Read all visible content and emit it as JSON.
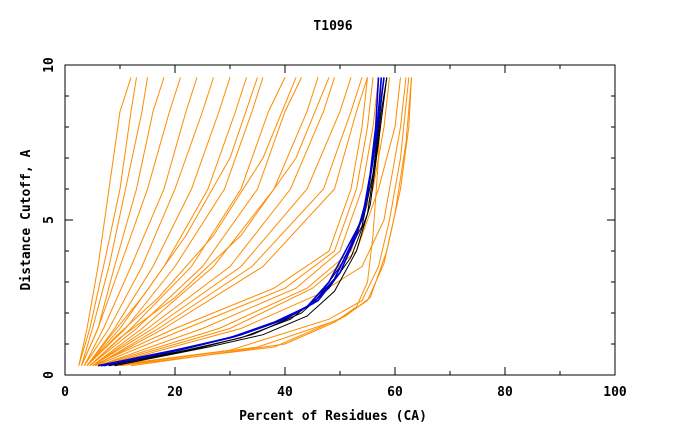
{
  "chart_data": {
    "type": "line",
    "title": "T1096",
    "xlabel": "Percent of Residues (CA)",
    "ylabel": "Distance Cutoff, A",
    "xlim": [
      0,
      100
    ],
    "ylim": [
      0,
      10
    ],
    "x_ticks": [
      "0",
      "20",
      "40",
      "60",
      "80",
      "100"
    ],
    "y_ticks": [
      "0",
      "5",
      "10"
    ],
    "grid": false,
    "colors": {
      "models": "#ff8c00",
      "reference": "#000000",
      "highlight": "#0000cd"
    },
    "series": [
      {
        "group": "models-steep",
        "points": [
          [
            2.5,
            0.3
          ],
          [
            4,
            1.5
          ],
          [
            6,
            3.5
          ],
          [
            8,
            6
          ],
          [
            10,
            8.5
          ],
          [
            12,
            9.6
          ]
        ]
      },
      {
        "group": "models-steep",
        "points": [
          [
            2.5,
            0.3
          ],
          [
            4.5,
            1.5
          ],
          [
            7,
            3.5
          ],
          [
            10,
            6
          ],
          [
            12,
            8.5
          ],
          [
            13,
            9.6
          ]
        ]
      },
      {
        "group": "models-steep",
        "points": [
          [
            3,
            0.3
          ],
          [
            5,
            1.5
          ],
          [
            8,
            3.5
          ],
          [
            11,
            6
          ],
          [
            14,
            8.5
          ],
          [
            15,
            9.6
          ]
        ]
      },
      {
        "group": "models-steep",
        "points": [
          [
            3,
            0.3
          ],
          [
            6,
            1.5
          ],
          [
            9,
            3.5
          ],
          [
            13,
            6
          ],
          [
            16,
            8.5
          ],
          [
            18,
            9.6
          ]
        ]
      },
      {
        "group": "models-steep",
        "points": [
          [
            3,
            0.3
          ],
          [
            6,
            1.5
          ],
          [
            10,
            3.5
          ],
          [
            15,
            6
          ],
          [
            19,
            8.5
          ],
          [
            21,
            9.6
          ]
        ]
      },
      {
        "group": "models-steep",
        "points": [
          [
            3.5,
            0.3
          ],
          [
            7,
            1.5
          ],
          [
            12,
            3.5
          ],
          [
            18,
            6
          ],
          [
            22,
            8.5
          ],
          [
            24,
            9.6
          ]
        ]
      },
      {
        "group": "models-steep",
        "points": [
          [
            3.5,
            0.3
          ],
          [
            8,
            1.5
          ],
          [
            14,
            3.5
          ],
          [
            20,
            6
          ],
          [
            25,
            8.5
          ],
          [
            27,
            9.6
          ]
        ]
      },
      {
        "group": "models-steep",
        "points": [
          [
            4,
            0.3
          ],
          [
            9,
            1.5
          ],
          [
            16,
            3.5
          ],
          [
            23,
            6
          ],
          [
            28,
            8.5
          ],
          [
            30,
            9.6
          ]
        ]
      },
      {
        "group": "models-steep",
        "points": [
          [
            4,
            0.3
          ],
          [
            10,
            1.5
          ],
          [
            18,
            3.5
          ],
          [
            26,
            6
          ],
          [
            31,
            8.5
          ],
          [
            33,
            9.6
          ]
        ]
      },
      {
        "group": "models-steep",
        "points": [
          [
            4,
            0.3
          ],
          [
            11,
            1.5
          ],
          [
            20,
            3.5
          ],
          [
            29,
            6
          ],
          [
            34,
            8.5
          ],
          [
            36,
            9.6
          ]
        ]
      },
      {
        "group": "models-steep",
        "points": [
          [
            4.5,
            0.3
          ],
          [
            12,
            1.5
          ],
          [
            23,
            3.5
          ],
          [
            32,
            6
          ],
          [
            37,
            8.5
          ],
          [
            40,
            9.6
          ]
        ]
      },
      {
        "group": "models-steep",
        "points": [
          [
            4.5,
            0.3
          ],
          [
            13,
            1.5
          ],
          [
            25,
            3.5
          ],
          [
            35,
            6
          ],
          [
            40,
            8.5
          ],
          [
            43,
            9.6
          ]
        ]
      },
      {
        "group": "models-steep",
        "points": [
          [
            5,
            0.3
          ],
          [
            14,
            1.5
          ],
          [
            27,
            3.5
          ],
          [
            38,
            6
          ],
          [
            44,
            8.5
          ],
          [
            46,
            9.6
          ]
        ]
      },
      {
        "group": "models-steep",
        "points": [
          [
            5,
            0.3
          ],
          [
            15,
            1.5
          ],
          [
            30,
            3.5
          ],
          [
            41,
            6
          ],
          [
            47,
            8.5
          ],
          [
            49,
            9.6
          ]
        ]
      },
      {
        "group": "models-steep",
        "points": [
          [
            5,
            0.3
          ],
          [
            16,
            1.5
          ],
          [
            32,
            3.5
          ],
          [
            44,
            6
          ],
          [
            50,
            8.5
          ],
          [
            52,
            9.6
          ]
        ]
      },
      {
        "group": "models-steep",
        "points": [
          [
            5.5,
            0.3
          ],
          [
            17,
            1.5
          ],
          [
            34,
            3.5
          ],
          [
            47,
            6
          ],
          [
            52,
            8.5
          ],
          [
            54,
            9.6
          ]
        ]
      },
      {
        "group": "models-steep",
        "points": [
          [
            5.5,
            0.3
          ],
          [
            18,
            1.5
          ],
          [
            36,
            3.5
          ],
          [
            49,
            6
          ],
          [
            53,
            8.5
          ],
          [
            55,
            9.6
          ]
        ]
      },
      {
        "group": "models-steep",
        "points": [
          [
            4,
            0.3
          ],
          [
            8,
            1.2
          ],
          [
            14,
            2.5
          ],
          [
            22,
            4.5
          ],
          [
            30,
            7
          ],
          [
            35,
            9.6
          ]
        ]
      },
      {
        "group": "models-steep",
        "points": [
          [
            4,
            0.3
          ],
          [
            9,
            1.2
          ],
          [
            17,
            2.5
          ],
          [
            27,
            4.5
          ],
          [
            36,
            7
          ],
          [
            42,
            9.6
          ]
        ]
      },
      {
        "group": "models-steep",
        "points": [
          [
            4.5,
            0.3
          ],
          [
            10,
            1.2
          ],
          [
            20,
            2.5
          ],
          [
            32,
            4.5
          ],
          [
            42,
            7
          ],
          [
            48,
            9.6
          ]
        ]
      },
      {
        "group": "models-mid",
        "points": [
          [
            5,
            0.3
          ],
          [
            20,
            1.5
          ],
          [
            38,
            2.8
          ],
          [
            48,
            4
          ],
          [
            52,
            6
          ],
          [
            54,
            8
          ],
          [
            55,
            9.6
          ]
        ]
      },
      {
        "group": "models-mid",
        "points": [
          [
            5.5,
            0.3
          ],
          [
            22,
            1.5
          ],
          [
            40,
            2.8
          ],
          [
            49,
            4
          ],
          [
            53,
            6
          ],
          [
            55,
            8
          ],
          [
            56,
            9.6
          ]
        ]
      },
      {
        "group": "models-mid",
        "points": [
          [
            6,
            0.3
          ],
          [
            25,
            1.5
          ],
          [
            42,
            2.8
          ],
          [
            50,
            4
          ],
          [
            54,
            6
          ],
          [
            56,
            8
          ],
          [
            57,
            9.6
          ]
        ]
      },
      {
        "group": "models-mid",
        "points": [
          [
            6,
            0.3
          ],
          [
            28,
            1.5
          ],
          [
            44,
            2.8
          ],
          [
            52,
            4
          ],
          [
            56,
            6
          ],
          [
            58,
            8
          ],
          [
            59,
            9.6
          ]
        ]
      },
      {
        "group": "models-mid",
        "points": [
          [
            6.5,
            0.3
          ],
          [
            30,
            1.5
          ],
          [
            45,
            2.8
          ],
          [
            53,
            4
          ],
          [
            57,
            6
          ],
          [
            60,
            8
          ],
          [
            61,
            9.6
          ]
        ]
      },
      {
        "group": "models-mid",
        "points": [
          [
            7,
            0.3
          ],
          [
            32,
            1.5
          ],
          [
            46,
            2.6
          ],
          [
            54,
            3.5
          ],
          [
            58,
            5
          ],
          [
            61,
            8
          ],
          [
            62,
            9.6
          ]
        ]
      },
      {
        "group": "models-flat",
        "points": [
          [
            8,
            0.3
          ],
          [
            30,
            0.8
          ],
          [
            48,
            1.8
          ],
          [
            54,
            2.4
          ],
          [
            57,
            3.5
          ],
          [
            59,
            5
          ],
          [
            61,
            7
          ],
          [
            62.5,
            9.6
          ]
        ]
      },
      {
        "group": "models-flat",
        "points": [
          [
            9,
            0.3
          ],
          [
            35,
            0.9
          ],
          [
            50,
            1.8
          ],
          [
            55,
            2.4
          ],
          [
            58,
            3.6
          ],
          [
            60,
            5.2
          ],
          [
            62,
            7.5
          ],
          [
            63,
            9.6
          ]
        ]
      },
      {
        "group": "models-flat",
        "points": [
          [
            10,
            0.3
          ],
          [
            38,
            0.9
          ],
          [
            51,
            1.9
          ],
          [
            55.5,
            2.5
          ],
          [
            58.5,
            4
          ],
          [
            61,
            6
          ],
          [
            62.5,
            8
          ],
          [
            63,
            9.6
          ]
        ]
      },
      {
        "group": "models-flat",
        "points": [
          [
            12,
            0.3
          ],
          [
            40,
            1
          ],
          [
            49,
            1.7
          ],
          [
            53,
            2.2
          ],
          [
            55,
            3
          ],
          [
            56,
            4.5
          ],
          [
            57,
            7
          ],
          [
            57.5,
            9.6
          ]
        ]
      },
      {
        "group": "reference",
        "points": [
          [
            7,
            0.3
          ],
          [
            22,
            0.8
          ],
          [
            32,
            1.2
          ],
          [
            41,
            1.8
          ],
          [
            46,
            2.5
          ],
          [
            50,
            3.5
          ],
          [
            54,
            4.8
          ],
          [
            56,
            6.5
          ],
          [
            57,
            8
          ],
          [
            58,
            9.6
          ]
        ]
      },
      {
        "group": "reference",
        "points": [
          [
            8,
            0.3
          ],
          [
            24,
            0.85
          ],
          [
            34,
            1.3
          ],
          [
            43,
            2
          ],
          [
            48,
            2.8
          ],
          [
            52,
            3.8
          ],
          [
            55,
            5.2
          ],
          [
            56.5,
            7
          ],
          [
            57.5,
            8.5
          ],
          [
            58.5,
            9.6
          ]
        ]
      },
      {
        "group": "reference",
        "points": [
          [
            9,
            0.3
          ],
          [
            26,
            0.9
          ],
          [
            36,
            1.3
          ],
          [
            44,
            1.9
          ],
          [
            49,
            2.7
          ],
          [
            53,
            4
          ],
          [
            55.5,
            5.5
          ],
          [
            57,
            7.5
          ],
          [
            58.5,
            9.6
          ]
        ]
      },
      {
        "group": "highlight",
        "points": [
          [
            6,
            0.3
          ],
          [
            20,
            0.8
          ],
          [
            30,
            1.2
          ],
          [
            38,
            1.7
          ],
          [
            44,
            2.2
          ],
          [
            48,
            3
          ],
          [
            51,
            4
          ],
          [
            54,
            5
          ],
          [
            55.5,
            6.5
          ],
          [
            56.5,
            8
          ],
          [
            57,
            9.6
          ]
        ]
      },
      {
        "group": "highlight",
        "points": [
          [
            6.5,
            0.3
          ],
          [
            21,
            0.82
          ],
          [
            31,
            1.25
          ],
          [
            39,
            1.75
          ],
          [
            45,
            2.3
          ],
          [
            49,
            3.1
          ],
          [
            52,
            4.2
          ],
          [
            54.5,
            5.3
          ],
          [
            56,
            7
          ],
          [
            57,
            8.5
          ],
          [
            57.5,
            9.6
          ]
        ]
      },
      {
        "group": "highlight",
        "points": [
          [
            7,
            0.3
          ],
          [
            22,
            0.85
          ],
          [
            32,
            1.3
          ],
          [
            40,
            1.8
          ],
          [
            46,
            2.4
          ],
          [
            50,
            3.3
          ],
          [
            53,
            4.5
          ],
          [
            55,
            5.8
          ],
          [
            56.5,
            7.5
          ],
          [
            58,
            9.6
          ]
        ]
      }
    ]
  }
}
